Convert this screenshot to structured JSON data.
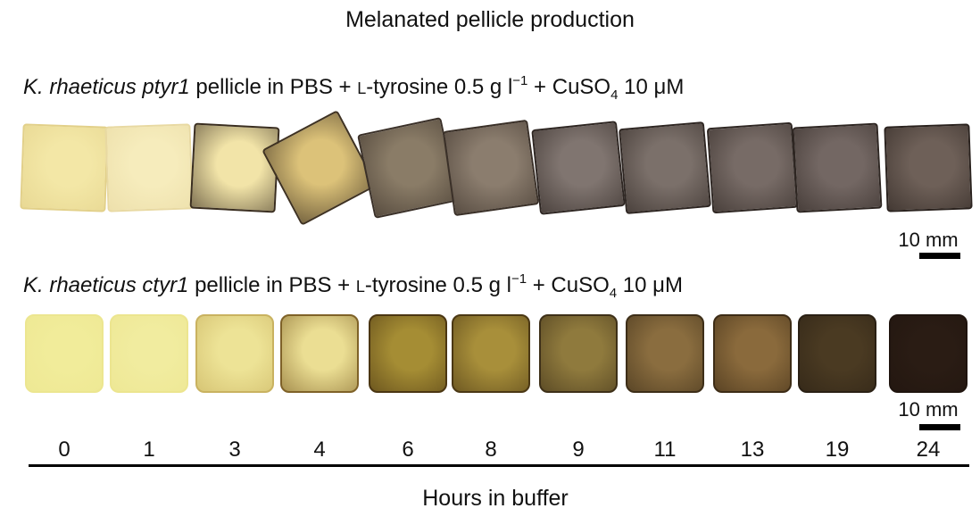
{
  "title": "Melanated pellicle production",
  "rows": [
    {
      "label": {
        "species": "K. rhaeticus ptyr1",
        "mid": " pellicle in PBS + ",
        "l_prefix": "L",
        "tyrosine": "-tyrosine 0.5 g l",
        "exp": "−1",
        "cuso": " + CuSO",
        "sub": "4",
        "tail": " 10 μM"
      },
      "scalebar": "10 mm",
      "pellicle_colors": [
        "#f3e7a6",
        "#f6ecbc",
        "#f2e4a8",
        "#dcc279",
        "#8a7c67",
        "#8b7d6e",
        "#807570",
        "#7b706a",
        "#776b66",
        "#736763",
        "#6e6058"
      ],
      "edge_colors": [
        "#e2d089",
        "#e8d9a2",
        "#3a2e20",
        "#3e3121",
        "#3a3028",
        "#3a3028",
        "#2e2622",
        "#2e2622",
        "#2e2622",
        "#2e2622",
        "#2a221e"
      ]
    },
    {
      "label": {
        "species": "K. rhaeticus ctyr1",
        "mid": " pellicle in PBS + ",
        "l_prefix": "L",
        "tyrosine": "-tyrosine 0.5 g l",
        "exp": "−1",
        "cuso": " + CuSO",
        "sub": "4",
        "tail": " 10 μM"
      },
      "scalebar": "10 mm",
      "pellicle_colors": [
        "#f1ec9a",
        "#f1ec9f",
        "#ede396",
        "#ebde93",
        "#a58d34",
        "#a88f3a",
        "#8f7a3d",
        "#8a6d3f",
        "#8a6a3c",
        "#4a3a22",
        "#2a1c14"
      ],
      "edge_colors": [
        "#ece690",
        "#ece58f",
        "#c9b260",
        "#7f6228",
        "#4b3612",
        "#4b3814",
        "#3e3018",
        "#3d2e18",
        "#3d2c16",
        "#2a2014",
        "#1f140e"
      ]
    }
  ],
  "time_points": [
    "0",
    "1",
    "3",
    "4",
    "6",
    "8",
    "9",
    "11",
    "13",
    "19",
    "24"
  ],
  "x_axis_label": "Hours in buffer"
}
